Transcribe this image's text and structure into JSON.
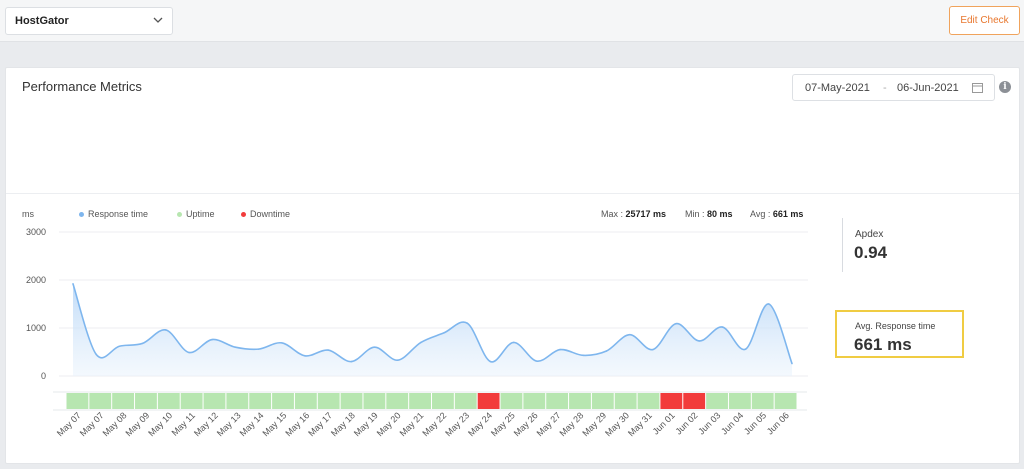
{
  "site_select": {
    "value": "HostGator"
  },
  "edit_button": {
    "label": "Edit Check",
    "color": "#e8772e"
  },
  "panel": {
    "title": "Performance Metrics",
    "date_start": "07-May-2021",
    "date_separator": "-",
    "date_end": "06-Jun-2021"
  },
  "legend": {
    "unit": "ms",
    "items": [
      {
        "label": "Response time",
        "color": "#7eb6ee"
      },
      {
        "label": "Uptime",
        "color": "#b7e6b0"
      },
      {
        "label": "Downtime",
        "color": "#f23b3b"
      }
    ]
  },
  "stats": {
    "max_label": "Max :",
    "max_value": "25717 ms",
    "min_label": "Min :",
    "min_value": "80 ms",
    "avg_label": "Avg :",
    "avg_value": "661 ms"
  },
  "apdex": {
    "label": "Apdex",
    "value": "0.94"
  },
  "avg_response": {
    "label": "Avg. Response time",
    "value": "661 ms",
    "highlight_color": "#f0cc43"
  },
  "chart_data": {
    "type": "area",
    "ylabel": "ms",
    "ylim": [
      0,
      3000
    ],
    "yticks": [
      0,
      1000,
      2000,
      3000
    ],
    "x": [
      "May 07",
      "May 07",
      "May 08",
      "May 09",
      "May 10",
      "May 11",
      "May 12",
      "May 13",
      "May 14",
      "May 15",
      "May 16",
      "May 17",
      "May 18",
      "May 19",
      "May 20",
      "May 21",
      "May 22",
      "May 23",
      "May 24",
      "May 25",
      "May 26",
      "May 27",
      "May 28",
      "May 29",
      "May 30",
      "May 31",
      "Jun 01",
      "Jun 02",
      "Jun 03",
      "Jun 04",
      "Jun 05",
      "Jun 06"
    ],
    "series": [
      {
        "name": "Response time",
        "values": [
          1920,
          450,
          620,
          680,
          960,
          490,
          760,
          600,
          560,
          690,
          420,
          540,
          300,
          600,
          330,
          700,
          900,
          1100,
          300,
          700,
          310,
          550,
          430,
          520,
          860,
          550,
          1090,
          730,
          1020,
          560,
          1500,
          260
        ]
      }
    ],
    "status_bar": [
      "up",
      "up",
      "up",
      "up",
      "up",
      "up",
      "up",
      "up",
      "up",
      "up",
      "up",
      "up",
      "up",
      "up",
      "up",
      "up",
      "up",
      "up",
      "down",
      "up",
      "up",
      "up",
      "up",
      "up",
      "up",
      "up",
      "down",
      "down",
      "up",
      "up",
      "up",
      "up"
    ],
    "status_colors": {
      "up": "#b7e6b0",
      "down": "#f23b3b"
    }
  }
}
